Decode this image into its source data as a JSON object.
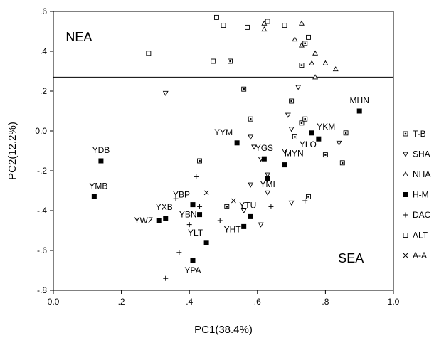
{
  "chart_data": {
    "type": "scatter",
    "xlabel": "PC1(38.4%)",
    "ylabel": "PC2(12.2%)",
    "xlim": [
      0.0,
      1.0
    ],
    "ylim": [
      -0.8,
      0.6
    ],
    "x_ticks": [
      0.0,
      0.2,
      0.4,
      0.6,
      0.8,
      1.0
    ],
    "x_tick_labels": [
      "0.0",
      ".2",
      ".4",
      ".6",
      ".8",
      "1.0"
    ],
    "y_ticks": [
      0.6,
      0.4,
      0.2,
      0.0,
      -0.2,
      -0.4,
      -0.6,
      -0.8
    ],
    "y_tick_labels": [
      ".6",
      ".4",
      ".2",
      "0.0",
      "-.2",
      "-.4",
      "-.6",
      "-.8"
    ],
    "grid": false,
    "legend_position": "right",
    "divider_y": 0.27,
    "regions": [
      {
        "label": "NEA",
        "x": 0.075,
        "y": 0.45
      },
      {
        "label": "SEA",
        "x": 0.875,
        "y": -0.66
      }
    ],
    "series": [
      {
        "name": "T-B",
        "marker": "square-dot",
        "points": [
          [
            0.52,
            0.35
          ],
          [
            0.56,
            0.21
          ],
          [
            0.58,
            0.06
          ],
          [
            0.43,
            -0.15
          ],
          [
            0.7,
            0.15
          ],
          [
            0.73,
            0.33
          ],
          [
            0.74,
            0.44
          ],
          [
            0.73,
            0.04
          ],
          [
            0.74,
            0.06
          ],
          [
            0.71,
            -0.03
          ],
          [
            0.8,
            -0.12
          ],
          [
            0.85,
            -0.16
          ],
          [
            0.86,
            -0.01
          ],
          [
            0.75,
            -0.33
          ],
          [
            0.51,
            -0.38
          ]
        ]
      },
      {
        "name": "SHA",
        "marker": "triangle-down",
        "points": [
          [
            0.33,
            0.19
          ],
          [
            0.58,
            -0.03
          ],
          [
            0.59,
            -0.08
          ],
          [
            0.61,
            -0.14
          ],
          [
            0.63,
            -0.22
          ],
          [
            0.63,
            -0.31
          ],
          [
            0.58,
            -0.27
          ],
          [
            0.68,
            -0.1
          ],
          [
            0.69,
            0.08
          ],
          [
            0.7,
            0.01
          ],
          [
            0.72,
            0.22
          ],
          [
            0.84,
            -0.06
          ],
          [
            0.61,
            -0.47
          ],
          [
            0.7,
            -0.36
          ],
          [
            0.56,
            -0.4
          ]
        ]
      },
      {
        "name": "NHA",
        "marker": "triangle-up",
        "points": [
          [
            0.62,
            0.54
          ],
          [
            0.62,
            0.51
          ],
          [
            0.73,
            0.54
          ],
          [
            0.71,
            0.46
          ],
          [
            0.73,
            0.43
          ],
          [
            0.77,
            0.39
          ],
          [
            0.76,
            0.34
          ],
          [
            0.8,
            0.34
          ],
          [
            0.83,
            0.31
          ],
          [
            0.77,
            0.27
          ]
        ]
      },
      {
        "name": "H-M",
        "marker": "filled-square",
        "points": [
          [
            0.9,
            0.1,
            "MHN"
          ],
          [
            0.76,
            -0.01,
            "YKM"
          ],
          [
            0.78,
            -0.04,
            "YLO"
          ],
          [
            0.54,
            -0.06,
            "YYM"
          ],
          [
            0.62,
            -0.14,
            "YGS"
          ],
          [
            0.68,
            -0.17,
            "MYN"
          ],
          [
            0.63,
            -0.24,
            "YMI"
          ],
          [
            0.14,
            -0.15,
            "YDB"
          ],
          [
            0.12,
            -0.33,
            "YMB"
          ],
          [
            0.41,
            -0.37,
            "YBP"
          ],
          [
            0.43,
            -0.42,
            "YBN"
          ],
          [
            0.33,
            -0.44,
            "YXB"
          ],
          [
            0.31,
            -0.45,
            "YWZ"
          ],
          [
            0.58,
            -0.43,
            "YTU"
          ],
          [
            0.56,
            -0.48,
            "YHT"
          ],
          [
            0.45,
            -0.56,
            "YLT"
          ],
          [
            0.41,
            -0.65,
            "YPA"
          ]
        ]
      },
      {
        "name": "DAC",
        "marker": "plus",
        "points": [
          [
            0.36,
            -0.34
          ],
          [
            0.43,
            -0.38
          ],
          [
            0.4,
            -0.47
          ],
          [
            0.49,
            -0.45
          ],
          [
            0.42,
            -0.23
          ],
          [
            0.37,
            -0.61
          ],
          [
            0.33,
            -0.74
          ],
          [
            0.64,
            -0.38
          ],
          [
            0.74,
            -0.35
          ]
        ]
      },
      {
        "name": "ALT",
        "marker": "open-square",
        "points": [
          [
            0.28,
            0.39
          ],
          [
            0.48,
            0.57
          ],
          [
            0.5,
            0.53
          ],
          [
            0.57,
            0.52
          ],
          [
            0.63,
            0.55
          ],
          [
            0.68,
            0.53
          ],
          [
            0.75,
            0.47
          ],
          [
            0.47,
            0.35
          ]
        ]
      },
      {
        "name": "A-A",
        "marker": "x",
        "points": [
          [
            0.45,
            -0.31
          ],
          [
            0.53,
            -0.35
          ]
        ]
      }
    ]
  }
}
